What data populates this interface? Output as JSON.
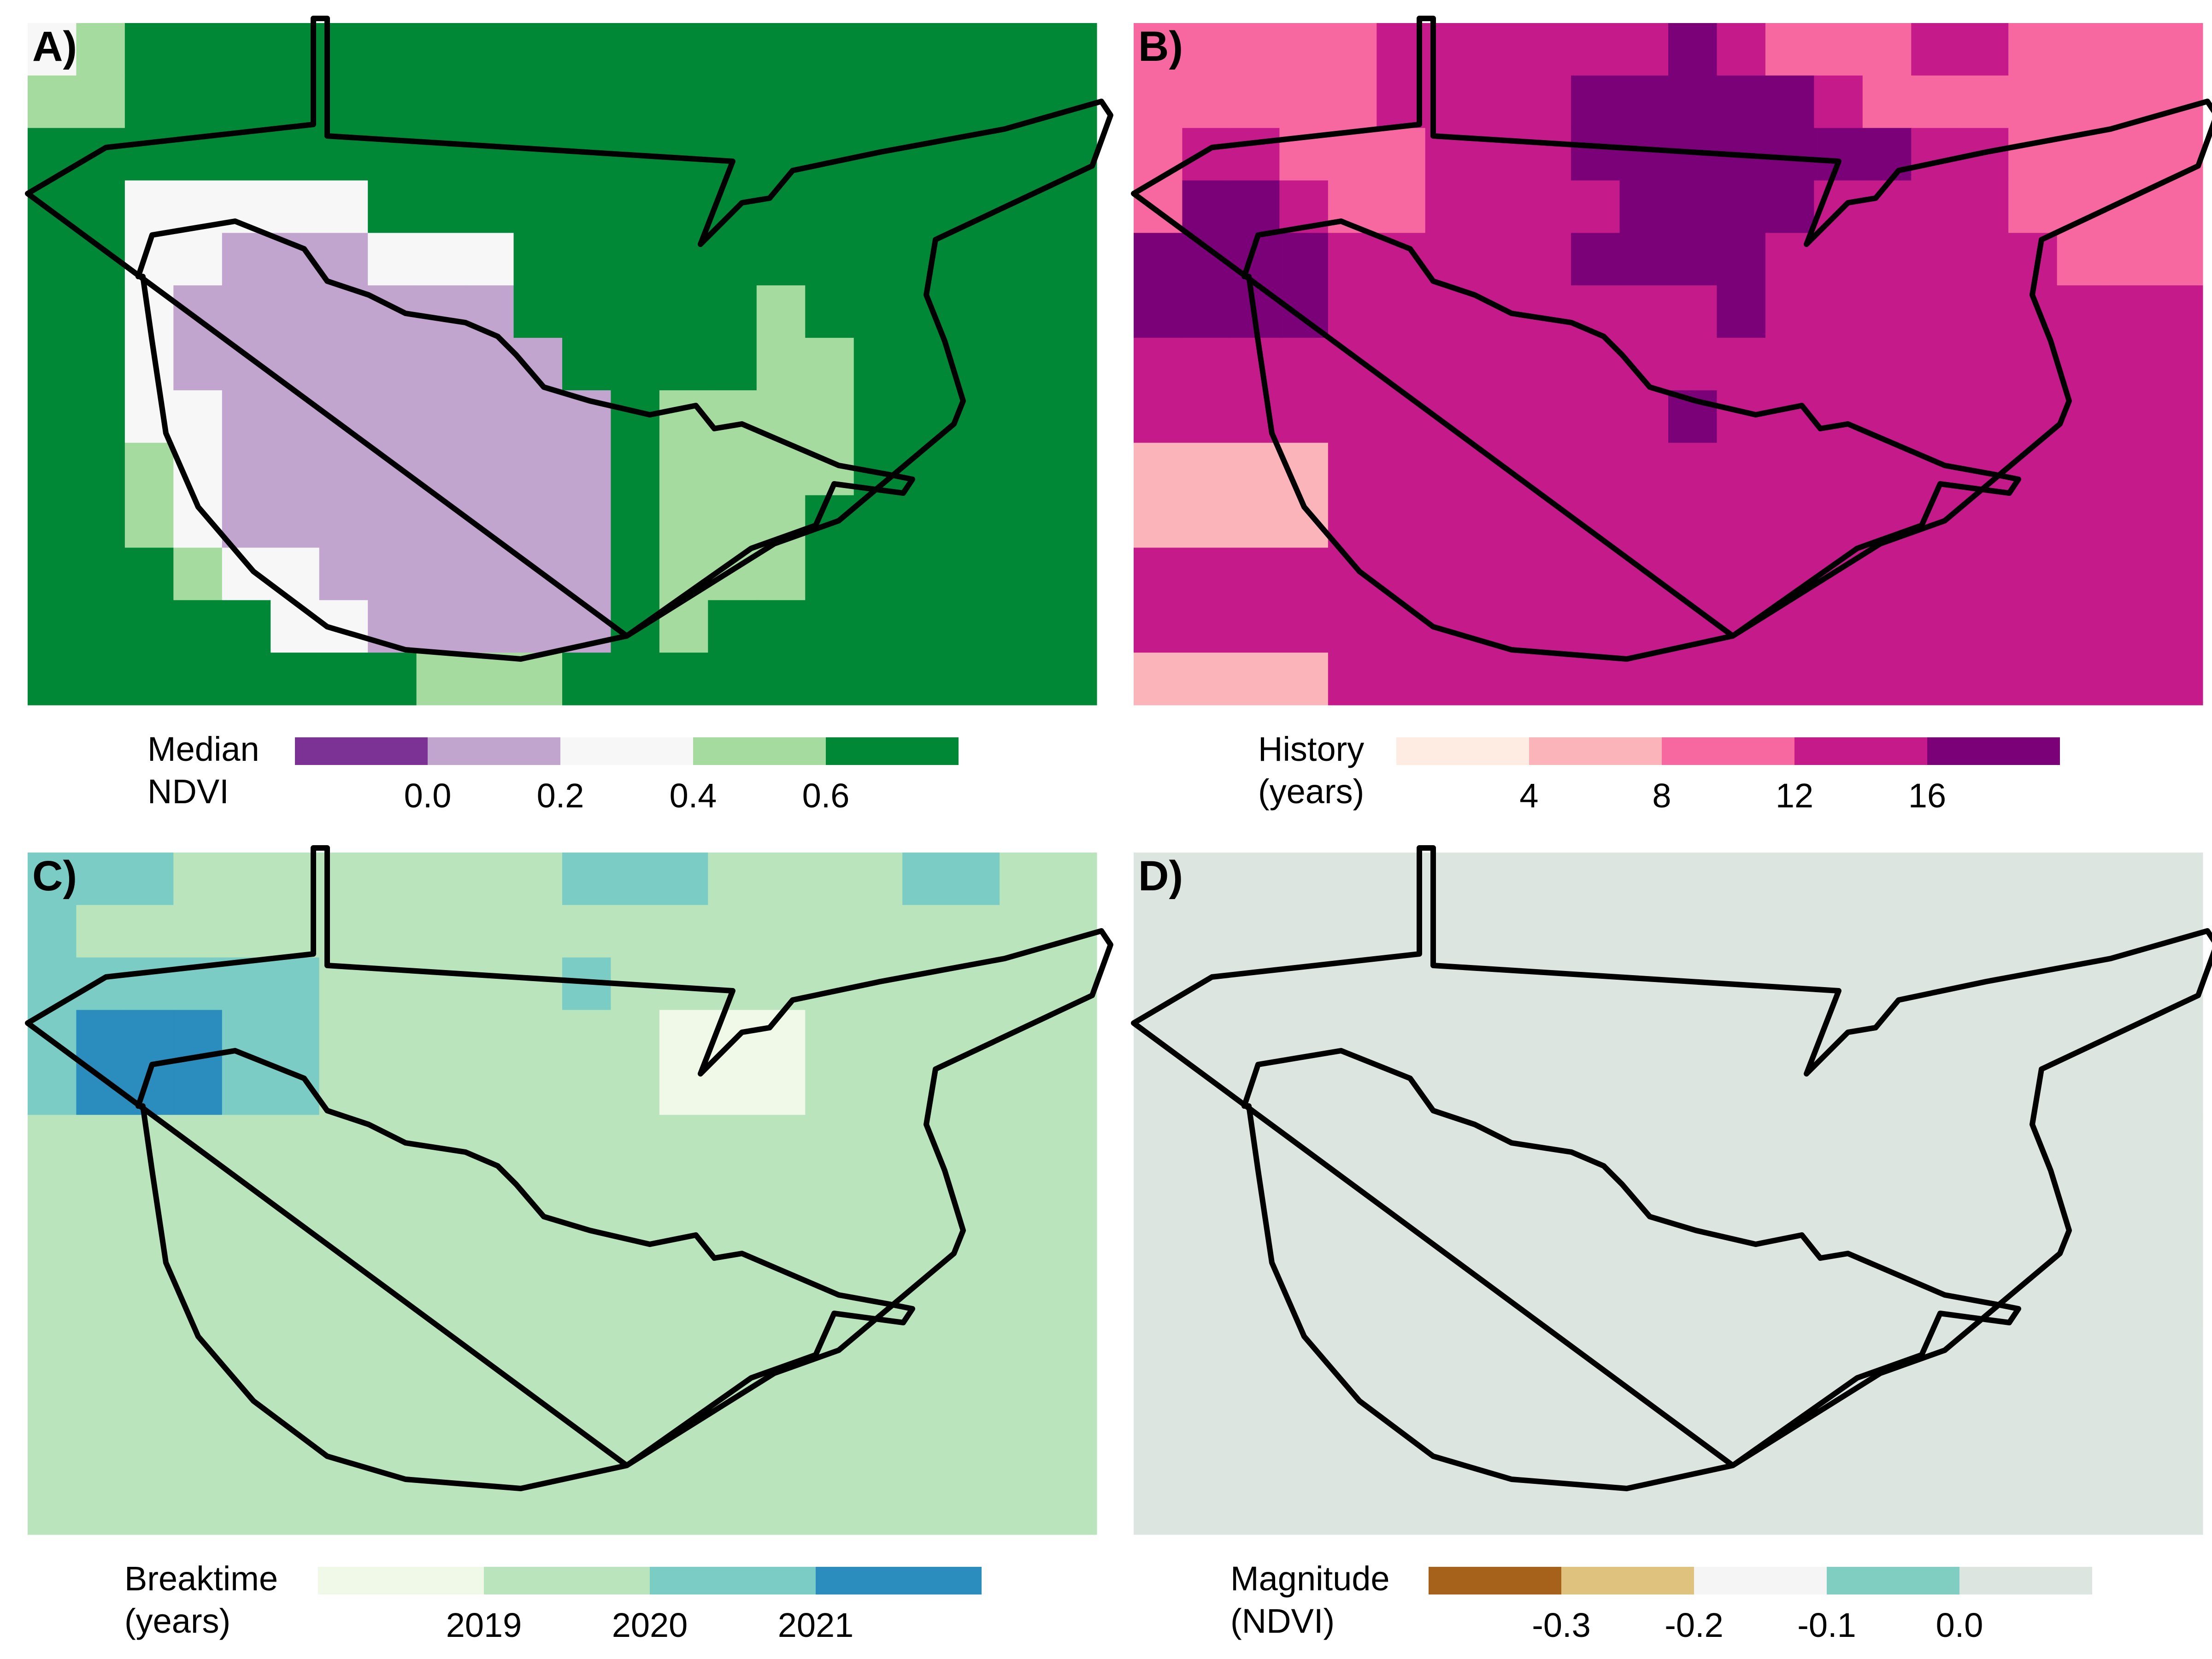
{
  "panels": [
    {
      "label": "A)",
      "legend": {
        "title_line1": "Median",
        "title_line2": "NDVI",
        "colors": [
          "#7b3294",
          "#c2a5cf",
          "#f7f7f7",
          "#a6dba0",
          "#008837"
        ],
        "ticks": [
          "0.0",
          "0.2",
          "0.4",
          "0.6"
        ]
      },
      "cell_classes": [
        "2344444444444444444444",
        "3344444444444444444444",
        "4444444444444444444444",
        "4422222444444444444444",
        "4422111222444444444444",
        "4421111111444443444444",
        "4421111111144443344444",
        "4422111111114333344444",
        "4432111111114333344444",
        "4432111111114333444444",
        "4443221111114333444444",
        "4444422111114344444444",
        "4444444433344444444444"
      ]
    },
    {
      "label": "B)",
      "legend": {
        "title_line1": "History",
        "title_line2": "(years)",
        "colors": [
          "#feebe2",
          "#fbb4b9",
          "#f768a1",
          "#c51b8a",
          "#7a0177"
        ],
        "ticks": [
          "4",
          "8",
          "12",
          "16"
        ]
      },
      "cell_classes": [
        "2222233333343222332222",
        "2222233334444432222222",
        "2332223334444444332222",
        "2443223333444433332222",
        "4444333334444333333222",
        "4444333333334333333333",
        "3333333333333333333333",
        "3333333333343333333333",
        "1111333333333333333333",
        "1111333333333333333333",
        "3333333333333333333333",
        "3333333333333333333333",
        "1111333333333333333333"
      ]
    },
    {
      "label": "C)",
      "legend": {
        "title_line1": "Breaktime",
        "title_line2": "(years)",
        "colors": [
          "#f0f9e8",
          "#bae4bc",
          "#7bccc4",
          "#2b8cbe"
        ],
        "ticks": [
          "2019",
          "2020",
          "2021"
        ]
      },
      "cell_classes": [
        "2221111111122211112211",
        "2111111111111111111111",
        "2222221111121111111111",
        "2333221111111000111111",
        "2333221111111000111111",
        "1111111111111111111111",
        "1111111111111111111111",
        "1111111111111111111111",
        "1111111111111111111111",
        "1111111111111111111111",
        "1111111111111111111111",
        "1111111111111111111111",
        "1111111111111111111111"
      ]
    },
    {
      "label": "D)",
      "legend": {
        "title_line1": "Magnitude",
        "title_line2": "(NDVI)",
        "colors": [
          "#a6611a",
          "#dfc27d",
          "#f5f5f5",
          "#80cdc1",
          "#dde5e1"
        ],
        "ticks": [
          "-0.3",
          "-0.2",
          "-0.1",
          "0.0"
        ]
      },
      "cell_classes": [
        "4444444444444444444444",
        "4444444444444444444444",
        "4444444444444444444444",
        "4444444444444444444444",
        "4444444444444444444444",
        "4444444444444444444444",
        "4444444444444444444444",
        "4444444444444444444444",
        "4444444444444444444444",
        "4444444444444444444444",
        "4444444444444444444444",
        "4444444444444444444444",
        "4444444444444444444444"
      ]
    }
  ]
}
